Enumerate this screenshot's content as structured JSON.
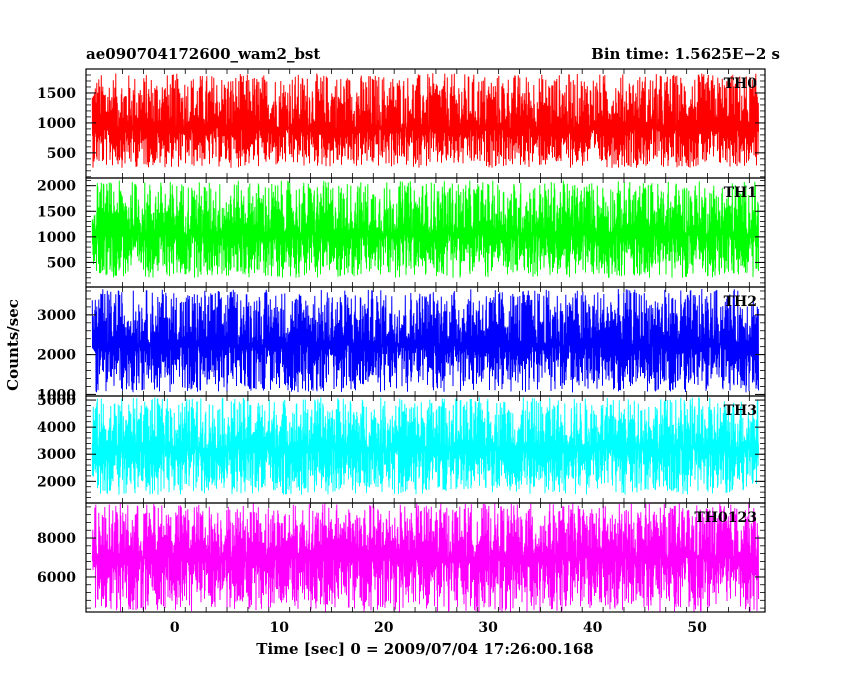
{
  "chart_data": {
    "type": "line",
    "title_left": "ae090704172600_wam2_bst",
    "title_right": "Bin time: 1.5625E−2 s",
    "xlabel": "Time [sec] 0 = 2009/07/04 17:26:00.168",
    "ylabel": "Counts/sec",
    "xlim": [
      -8.5,
      56.5
    ],
    "x_ticks": [
      0,
      10,
      20,
      30,
      40,
      50
    ],
    "x_tick_labels": [
      "0",
      "10",
      "20",
      "30",
      "40",
      "50"
    ],
    "data_x_range": [
      -7.9,
      55.9
    ],
    "grid": false,
    "panels": [
      {
        "name": "TH0",
        "color": "#ff0000",
        "ylim": [
          80,
          1900
        ],
        "y_ticks": [
          500,
          1000,
          1500
        ],
        "y_tick_labels": [
          "500",
          "1000",
          "1500"
        ],
        "mean": 910,
        "noise_min": 250,
        "noise_max": 1830
      },
      {
        "name": "TH1",
        "color": "#00ff00",
        "ylim": [
          20,
          2150
        ],
        "y_ticks": [
          500,
          1000,
          1500,
          2000
        ],
        "y_tick_labels": [
          "500",
          "1000",
          "1500",
          "2000"
        ],
        "mean": 1050,
        "noise_min": 200,
        "noise_max": 2100
      },
      {
        "name": "TH2",
        "color": "#0000ff",
        "ylim": [
          960,
          3700
        ],
        "y_ticks": [
          1000,
          2000,
          3000
        ],
        "y_tick_labels": [
          "1000",
          "2000",
          "3000"
        ],
        "mean": 2250,
        "noise_min": 1050,
        "noise_max": 3650
      },
      {
        "name": "TH3",
        "color": "#00ffff",
        "ylim": [
          1200,
          5150
        ],
        "y_ticks": [
          2000,
          3000,
          4000,
          5000
        ],
        "y_tick_labels": [
          "2000",
          "3000",
          "4000",
          "5000"
        ],
        "mean": 3200,
        "noise_min": 1500,
        "noise_max": 5100
      },
      {
        "name": "TH0123",
        "color": "#ff00ff",
        "ylim": [
          4200,
          9800
        ],
        "y_ticks": [
          6000,
          8000
        ],
        "y_tick_labels": [
          "6000",
          "8000"
        ],
        "mean": 7000,
        "noise_min": 4200,
        "noise_max": 9800
      }
    ]
  }
}
